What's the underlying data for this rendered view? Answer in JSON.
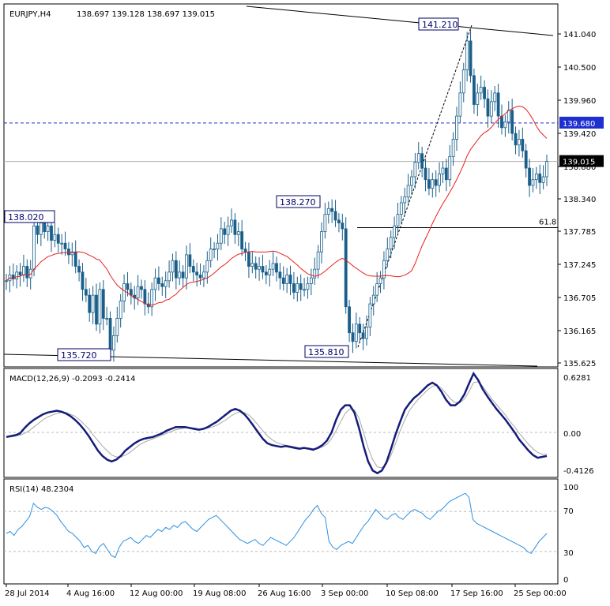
{
  "chart_header": {
    "symbol": "EURJPY,H4",
    "ohlc": "138.697 139.128 138.697 139.015"
  },
  "colors": {
    "candle": "#1a5f8a",
    "ma": "#e8201c",
    "macd": "#151c7a",
    "signal": "#a8a8a8",
    "rsi": "#2b8fe0",
    "level_line": "#1e2fd0",
    "grid_dash": "#bbbbbb",
    "trend": "#000000"
  },
  "chart_data": [
    {
      "type": "line",
      "title": "EURJPY,H4 138.697 139.128 138.697 139.015",
      "ylim": [
        135.625,
        141.6
      ],
      "y_ticks": [
        "141.040",
        "140.500",
        "139.960",
        "139.420",
        "138.880",
        "138.340",
        "137.785",
        "137.245",
        "136.705",
        "136.165",
        "135.625"
      ],
      "x_ticks": [
        "28 Jul 2014",
        "4 Aug 16:00",
        "12 Aug 00:00",
        "19 Aug 08:00",
        "26 Aug 16:00",
        "3 Sep 00:00",
        "10 Sep 08:00",
        "17 Sep 16:00",
        "25 Sep 00:00"
      ],
      "close_series": [
        136.95,
        137.05,
        136.98,
        137.1,
        137.05,
        137.2,
        137.0,
        137.15,
        137.9,
        137.75,
        137.95,
        137.8,
        137.9,
        137.65,
        137.75,
        137.6,
        137.6,
        137.5,
        137.4,
        137.45,
        137.2,
        137.1,
        136.8,
        136.7,
        136.4,
        136.7,
        136.2,
        136.8,
        136.3,
        136.3,
        135.75,
        136.0,
        136.3,
        136.6,
        136.9,
        136.8,
        136.7,
        136.65,
        136.85,
        136.8,
        136.55,
        136.5,
        136.8,
        137.0,
        136.9,
        136.85,
        136.95,
        137.1,
        137.3,
        137.0,
        137.1,
        137.0,
        137.4,
        137.2,
        137.1,
        137.05,
        137.0,
        137.1,
        137.3,
        137.5,
        137.5,
        137.6,
        137.85,
        137.75,
        137.9,
        138.0,
        137.75,
        137.8,
        137.5,
        137.45,
        137.2,
        137.25,
        137.15,
        137.2,
        137.1,
        137.05,
        137.15,
        137.25,
        137.1,
        137.0,
        136.9,
        137.05,
        136.9,
        136.75,
        136.9,
        136.8,
        136.8,
        136.9,
        137.0,
        137.15,
        137.45,
        137.8,
        138.1,
        138.2,
        138.15,
        138.0,
        137.95,
        137.85,
        136.5,
        136.05,
        135.9,
        136.2,
        136.05,
        135.95,
        136.15,
        136.55,
        136.7,
        136.9,
        137.0,
        137.3,
        137.5,
        137.7,
        137.9,
        138.1,
        138.3,
        138.4,
        138.6,
        138.75,
        139.0,
        139.15,
        138.9,
        138.7,
        138.55,
        138.7,
        138.6,
        138.8,
        138.9,
        138.7,
        139.1,
        139.4,
        139.8,
        140.2,
        140.6,
        141.1,
        140.5,
        140.0,
        140.2,
        140.3,
        140.1,
        139.8,
        140.05,
        140.2,
        139.8,
        139.6,
        139.7,
        139.9,
        139.5,
        139.3,
        139.4,
        139.2,
        138.9,
        138.6,
        138.7,
        138.8,
        138.65,
        138.75,
        139.015
      ],
      "series": [
        {
          "name": "",
          "type": "moving-average"
        }
      ],
      "levels": [
        {
          "value": 139.68,
          "label": "139.680",
          "style": "dashed"
        },
        {
          "value": 139.015,
          "label": "139.015",
          "style": "current-price"
        },
        {
          "value": 137.87,
          "label": "61.8",
          "style": "fibonacci"
        }
      ],
      "annotations": [
        {
          "label": "141.210",
          "value": 141.21
        },
        {
          "label": "138.270",
          "value": 138.27
        },
        {
          "label": "138.020",
          "value": 138.02
        },
        {
          "label": "135.810",
          "value": 135.81
        },
        {
          "label": "135.720",
          "value": 135.72
        }
      ],
      "grid": false
    },
    {
      "type": "line",
      "title": "MACD(12,26,9) -0.2093 -0.2414",
      "ylim": [
        -0.47,
        0.68
      ],
      "y_ticks": [
        "0.6281",
        "0.00",
        "-0.4126"
      ],
      "macd_series": [
        -0.05,
        -0.04,
        -0.03,
        -0.01,
        0.05,
        0.1,
        0.14,
        0.17,
        0.2,
        0.22,
        0.23,
        0.24,
        0.23,
        0.21,
        0.18,
        0.14,
        0.09,
        0.03,
        -0.04,
        -0.12,
        -0.2,
        -0.26,
        -0.3,
        -0.32,
        -0.3,
        -0.26,
        -0.2,
        -0.16,
        -0.12,
        -0.09,
        -0.07,
        -0.06,
        -0.05,
        -0.03,
        -0.01,
        0.02,
        0.04,
        0.06,
        0.06,
        0.06,
        0.05,
        0.04,
        0.03,
        0.04,
        0.06,
        0.09,
        0.12,
        0.16,
        0.2,
        0.24,
        0.26,
        0.24,
        0.2,
        0.14,
        0.07,
        0.0,
        -0.07,
        -0.12,
        -0.14,
        -0.15,
        -0.16,
        -0.15,
        -0.16,
        -0.17,
        -0.18,
        -0.17,
        -0.18,
        -0.19,
        -0.17,
        -0.14,
        -0.09,
        0.0,
        0.14,
        0.25,
        0.3,
        0.3,
        0.22,
        0.05,
        -0.15,
        -0.32,
        -0.42,
        -0.45,
        -0.42,
        -0.33,
        -0.18,
        -0.02,
        0.12,
        0.25,
        0.32,
        0.38,
        0.42,
        0.47,
        0.52,
        0.55,
        0.52,
        0.45,
        0.36,
        0.3,
        0.3,
        0.34,
        0.42,
        0.54,
        0.65,
        0.58,
        0.48,
        0.4,
        0.33,
        0.26,
        0.2,
        0.14,
        0.07,
        0.0,
        -0.08,
        -0.14,
        -0.2,
        -0.25,
        -0.28,
        -0.27,
        -0.26
      ],
      "signal_series": [
        -0.05,
        -0.05,
        -0.04,
        -0.03,
        -0.01,
        0.02,
        0.06,
        0.1,
        0.14,
        0.17,
        0.19,
        0.21,
        0.22,
        0.22,
        0.2,
        0.18,
        0.14,
        0.09,
        0.04,
        -0.03,
        -0.09,
        -0.15,
        -0.2,
        -0.25,
        -0.27,
        -0.27,
        -0.25,
        -0.22,
        -0.18,
        -0.14,
        -0.11,
        -0.09,
        -0.07,
        -0.05,
        -0.03,
        -0.01,
        0.01,
        0.03,
        0.04,
        0.05,
        0.05,
        0.05,
        0.04,
        0.04,
        0.05,
        0.06,
        0.08,
        0.11,
        0.14,
        0.18,
        0.21,
        0.23,
        0.22,
        0.19,
        0.14,
        0.08,
        0.02,
        -0.04,
        -0.08,
        -0.11,
        -0.13,
        -0.14,
        -0.15,
        -0.16,
        -0.17,
        -0.17,
        -0.17,
        -0.18,
        -0.18,
        -0.16,
        -0.13,
        -0.07,
        0.02,
        0.12,
        0.21,
        0.26,
        0.25,
        0.16,
        0.0,
        -0.17,
        -0.3,
        -0.38,
        -0.39,
        -0.35,
        -0.25,
        -0.12,
        0.02,
        0.14,
        0.24,
        0.31,
        0.37,
        0.42,
        0.47,
        0.51,
        0.52,
        0.49,
        0.43,
        0.37,
        0.33,
        0.33,
        0.37,
        0.45,
        0.55,
        0.56,
        0.51,
        0.44,
        0.37,
        0.31,
        0.25,
        0.19,
        0.12,
        0.06,
        -0.01,
        -0.07,
        -0.13,
        -0.18,
        -0.22,
        -0.24,
        -0.24
      ],
      "zero_line": true
    },
    {
      "type": "line",
      "title": "RSI(14) 48.2304",
      "ylim": [
        0,
        100
      ],
      "y_ticks": [
        "100",
        "70",
        "30",
        "0"
      ],
      "rsi_series": [
        48,
        50,
        46,
        52,
        55,
        60,
        65,
        78,
        74,
        72,
        74,
        73,
        70,
        66,
        60,
        55,
        50,
        48,
        44,
        40,
        34,
        36,
        30,
        28,
        35,
        38,
        32,
        26,
        24,
        34,
        40,
        42,
        44,
        40,
        38,
        42,
        46,
        44,
        48,
        52,
        50,
        54,
        52,
        56,
        54,
        58,
        60,
        56,
        52,
        50,
        54,
        58,
        62,
        64,
        66,
        62,
        58,
        54,
        50,
        46,
        42,
        40,
        38,
        40,
        42,
        38,
        36,
        40,
        44,
        42,
        40,
        38,
        36,
        40,
        44,
        50,
        56,
        62,
        66,
        72,
        76,
        68,
        64,
        40,
        34,
        32,
        36,
        38,
        40,
        38,
        44,
        50,
        56,
        60,
        66,
        72,
        68,
        64,
        62,
        66,
        68,
        64,
        62,
        66,
        70,
        72,
        70,
        68,
        64,
        62,
        66,
        70,
        72,
        76,
        80,
        82,
        84,
        86,
        88,
        84,
        62,
        58,
        56,
        54,
        52,
        50,
        48,
        46,
        44,
        42,
        40,
        38,
        36,
        34,
        30,
        28,
        34,
        40,
        44,
        48
      ],
      "levels": [
        70,
        30
      ]
    }
  ]
}
